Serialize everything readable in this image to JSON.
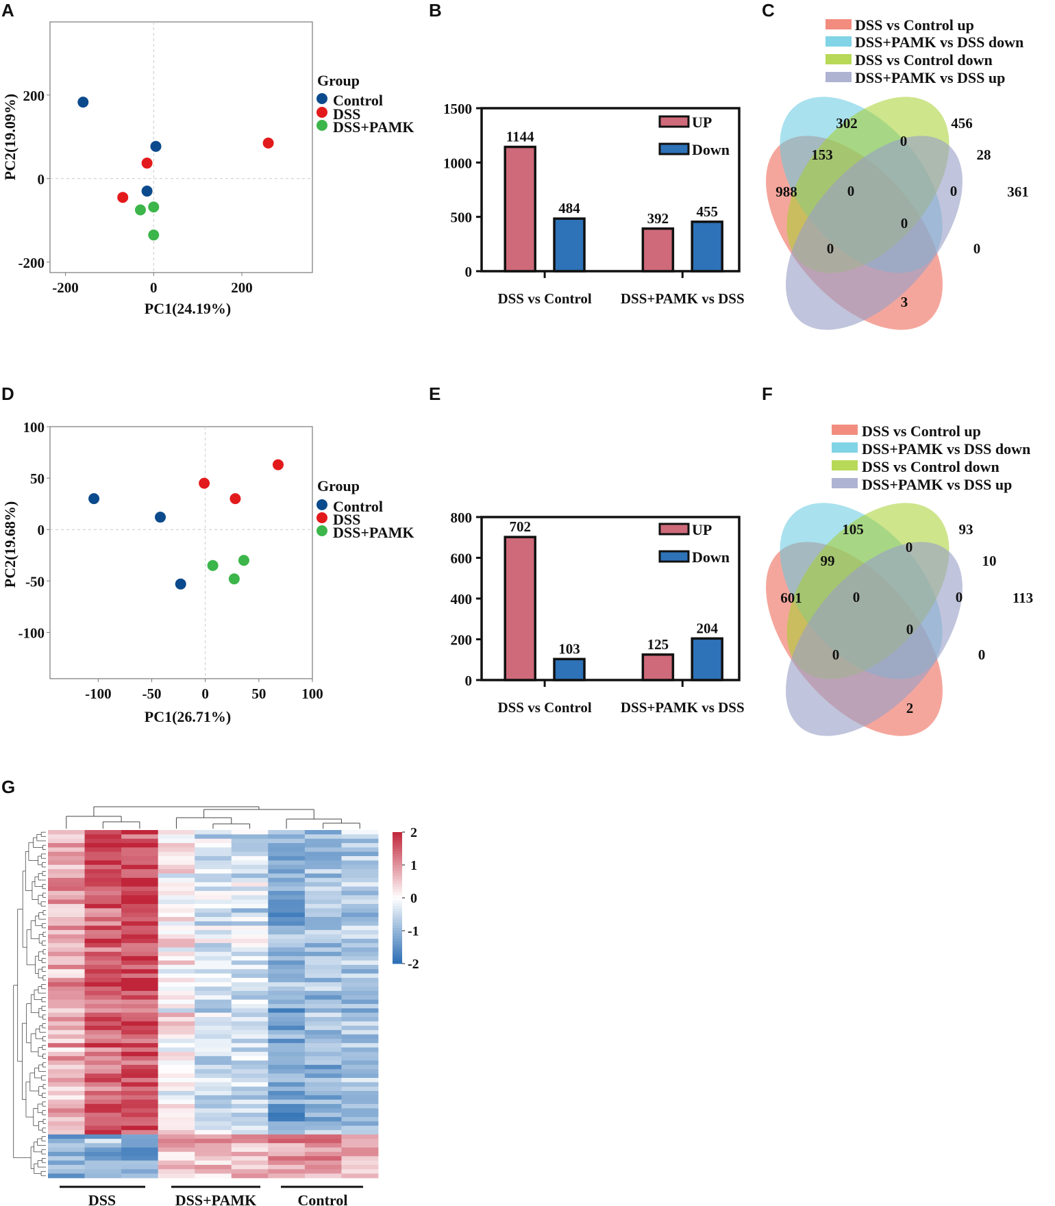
{
  "figure": {
    "panel_labels": [
      "A",
      "B",
      "C",
      "D",
      "E",
      "F",
      "G"
    ]
  },
  "colors": {
    "control": "#0b4a8c",
    "dss": "#e31a1c",
    "dss_pamk": "#3cb54a",
    "bar_up": "#cf6a7a",
    "bar_down": "#2e72b8",
    "venn_red": "#ef6f5f",
    "venn_cyan": "#62c8e0",
    "venn_green": "#a6cf2e",
    "venn_purple": "#9aa0c7",
    "heat_high": "#c0253a",
    "heat_mid": "#ffffff",
    "heat_low": "#2a6db3"
  },
  "chart_data": [
    {
      "panel": "A",
      "type": "scatter",
      "xlabel": "PC1(24.19%)",
      "ylabel": "PC2(19.09%)",
      "xlim": [
        -235,
        360
      ],
      "ylim": [
        -225,
        375
      ],
      "xticks": [
        "-200",
        "0",
        "200"
      ],
      "xtick_values": [
        -200,
        0,
        200
      ],
      "yticks": [
        "-200",
        "0",
        "200"
      ],
      "ytick_values": [
        -200,
        0,
        200
      ],
      "legend_title": "Group",
      "legend": [
        "Control",
        "DSS",
        "DSS+PAMK"
      ],
      "series": [
        {
          "name": "Control",
          "color": "#0b4a8c",
          "points": [
            [
              -160,
              183
            ],
            [
              5,
              77
            ],
            [
              -15,
              -30
            ]
          ]
        },
        {
          "name": "DSS",
          "color": "#e31a1c",
          "points": [
            [
              260,
              85
            ],
            [
              -15,
              37
            ],
            [
              -70,
              -45
            ]
          ]
        },
        {
          "name": "DSS+PAMK",
          "color": "#3cb54a",
          "points": [
            [
              -30,
              -75
            ],
            [
              0,
              -68
            ],
            [
              0,
              -135
            ]
          ]
        }
      ]
    },
    {
      "panel": "B",
      "type": "bar",
      "categories": [
        "DSS vs Control",
        "DSS+PAMK vs DSS"
      ],
      "ylim": [
        0,
        1500
      ],
      "yticks": [
        "0",
        "500",
        "1000",
        "1500"
      ],
      "ytick_values": [
        0,
        500,
        1000,
        1500
      ],
      "legend": [
        "UP",
        "Down"
      ],
      "series": [
        {
          "name": "UP",
          "values": [
            1144,
            392
          ],
          "labels": [
            "1144",
            "392"
          ]
        },
        {
          "name": "Down",
          "values": [
            484,
            455
          ],
          "labels": [
            "484",
            "455"
          ]
        }
      ]
    },
    {
      "panel": "C",
      "type": "venn",
      "sets": [
        "DSS vs Control up",
        "DSS+PAMK vs DSS down",
        "DSS vs Control down",
        "DSS+PAMK vs DSS up"
      ],
      "regions": [
        "988",
        "302",
        "456",
        "361",
        "153",
        "0",
        "28",
        "0",
        "0",
        "0",
        "0",
        "0",
        "3"
      ]
    },
    {
      "panel": "D",
      "type": "scatter",
      "xlabel": "PC1(26.71%)",
      "ylabel": "PC2(19.68%)",
      "xlim": [
        -145,
        100
      ],
      "ylim": [
        -145,
        100
      ],
      "xticks": [
        "-100",
        "-50",
        "0",
        "50",
        "100"
      ],
      "xtick_values": [
        -100,
        -50,
        0,
        50,
        100
      ],
      "yticks": [
        "-100",
        "-50",
        "0",
        "50",
        "100"
      ],
      "ytick_values": [
        -100,
        -50,
        0,
        50,
        100
      ],
      "legend_title": "Group",
      "legend": [
        "Control",
        "DSS",
        "DSS+PAMK"
      ],
      "series": [
        {
          "name": "Control",
          "color": "#0b4a8c",
          "points": [
            [
              -104,
              30
            ],
            [
              -42,
              12
            ],
            [
              -23,
              -53
            ]
          ]
        },
        {
          "name": "DSS",
          "color": "#e31a1c",
          "points": [
            [
              -1,
              45
            ],
            [
              28,
              30
            ],
            [
              68,
              63
            ]
          ]
        },
        {
          "name": "DSS+PAMK",
          "color": "#3cb54a",
          "points": [
            [
              7,
              -35
            ],
            [
              36,
              -30
            ],
            [
              27,
              -48
            ]
          ]
        }
      ]
    },
    {
      "panel": "E",
      "type": "bar",
      "categories": [
        "DSS vs Control",
        "DSS+PAMK vs DSS"
      ],
      "ylim": [
        0,
        800
      ],
      "yticks": [
        "0",
        "200",
        "400",
        "600",
        "800"
      ],
      "ytick_values": [
        0,
        200,
        400,
        600,
        800
      ],
      "legend": [
        "UP",
        "Down"
      ],
      "series": [
        {
          "name": "UP",
          "values": [
            702,
            125
          ],
          "labels": [
            "702",
            "125"
          ]
        },
        {
          "name": "Down",
          "values": [
            103,
            204
          ],
          "labels": [
            "103",
            "204"
          ]
        }
      ]
    },
    {
      "panel": "F",
      "type": "venn",
      "sets": [
        "DSS vs Control up",
        "DSS+PAMK vs DSS down",
        "DSS vs Control down",
        "DSS+PAMK vs DSS up"
      ],
      "regions": [
        "601",
        "105",
        "93",
        "113",
        "99",
        "0",
        "10",
        "0",
        "0",
        "0",
        "0",
        "0",
        "2"
      ]
    },
    {
      "panel": "G",
      "type": "heatmap",
      "groups": [
        "DSS",
        "DSS+PAMK",
        "Control"
      ],
      "colorbar_ticks": [
        "2",
        "1",
        "0",
        "-1",
        "-2"
      ],
      "colorbar_values": [
        2,
        1,
        0,
        -1,
        -2
      ],
      "n_samples": 9,
      "n_genes": 80,
      "cluster_means": [
        {
          "rows": 70,
          "means": [
            0.8,
            1.5,
            1.6,
            0.1,
            -0.4,
            -0.4,
            -1.2,
            -0.9,
            -0.7
          ]
        },
        {
          "rows": 10,
          "means": [
            -1.0,
            -1.0,
            -1.1,
            0.6,
            0.7,
            0.8,
            0.9,
            1.0,
            0.8
          ]
        }
      ]
    }
  ]
}
